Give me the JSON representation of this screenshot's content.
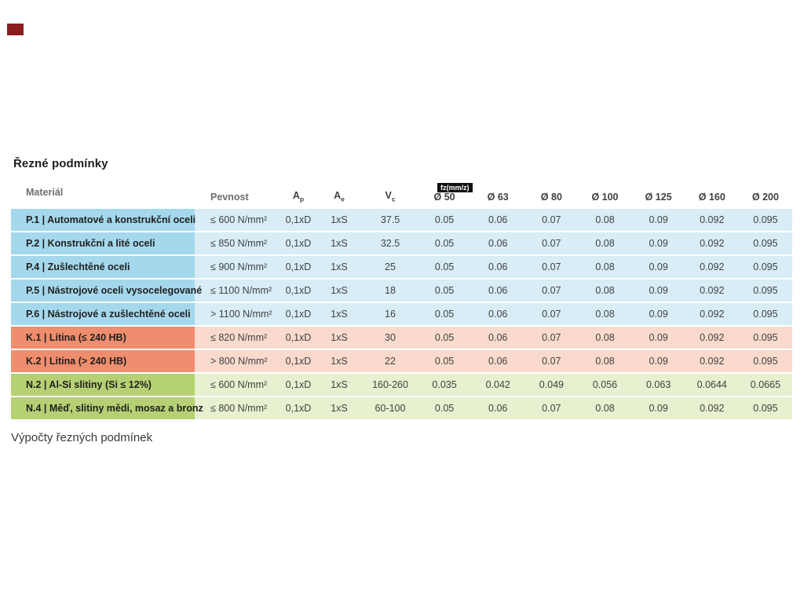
{
  "page": {
    "title": "Řezné podmínky",
    "footer": "Výpočty řezných podmínek"
  },
  "table": {
    "fz_badge": "fz(mm/z)",
    "headers": {
      "material": "Materiál",
      "pevnost": "Pevnost",
      "ap_main": "A",
      "ap_sub": "p",
      "ae_main": "A",
      "ae_sub": "e",
      "vc_main": "V",
      "vc_sub": "c",
      "diameters": [
        "Ø 50",
        "Ø 63",
        "Ø 80",
        "Ø 100",
        "Ø 125",
        "Ø 160",
        "Ø 200"
      ]
    },
    "rows": [
      {
        "group": "P",
        "label": "P.1 | Automatové a konstrukční oceli",
        "pevnost": "≤ 600 N/mm²",
        "ap": "0,1xD",
        "ae": "1xS",
        "vc": "37.5",
        "fz": [
          "0.05",
          "0.06",
          "0.07",
          "0.08",
          "0.09",
          "0.092",
          "0.095"
        ]
      },
      {
        "group": "P",
        "label": "P.2 | Konstrukční a lité oceli",
        "pevnost": "≤ 850 N/mm²",
        "ap": "0,1xD",
        "ae": "1xS",
        "vc": "32.5",
        "fz": [
          "0.05",
          "0.06",
          "0.07",
          "0.08",
          "0.09",
          "0.092",
          "0.095"
        ]
      },
      {
        "group": "P",
        "label": "P.4 | Zušlechtěné oceli",
        "pevnost": "≤ 900 N/mm²",
        "ap": "0,1xD",
        "ae": "1xS",
        "vc": "25",
        "fz": [
          "0.05",
          "0.06",
          "0.07",
          "0.08",
          "0.09",
          "0.092",
          "0.095"
        ]
      },
      {
        "group": "P",
        "label": "P.5 | Nástrojové oceli vysocelegované",
        "pevnost": "≤ 1100 N/mm²",
        "ap": "0,1xD",
        "ae": "1xS",
        "vc": "18",
        "fz": [
          "0.05",
          "0.06",
          "0.07",
          "0.08",
          "0.09",
          "0.092",
          "0.095"
        ]
      },
      {
        "group": "P",
        "label": "P.6 | Nástrojové a zušlechtěné oceli",
        "pevnost": "> 1100 N/mm²",
        "ap": "0,1xD",
        "ae": "1xS",
        "vc": "16",
        "fz": [
          "0.05",
          "0.06",
          "0.07",
          "0.08",
          "0.09",
          "0.092",
          "0.095"
        ]
      },
      {
        "group": "K",
        "label": "K.1 | Litina (≤ 240 HB)",
        "pevnost": "≤ 820 N/mm²",
        "ap": "0,1xD",
        "ae": "1xS",
        "vc": "30",
        "fz": [
          "0.05",
          "0.06",
          "0.07",
          "0.08",
          "0.09",
          "0.092",
          "0.095"
        ]
      },
      {
        "group": "K",
        "label": "K.2 | Litina (> 240 HB)",
        "pevnost": "> 800 N/mm²",
        "ap": "0,1xD",
        "ae": "1xS",
        "vc": "22",
        "fz": [
          "0.05",
          "0.06",
          "0.07",
          "0.08",
          "0.09",
          "0.092",
          "0.095"
        ]
      },
      {
        "group": "N",
        "label": "N.2 | Al-Si slitiny (Si ≤ 12%)",
        "pevnost": "≤ 600 N/mm²",
        "ap": "0,1xD",
        "ae": "1xS",
        "vc": "160-260",
        "fz": [
          "0.035",
          "0.042",
          "0.049",
          "0.056",
          "0.063",
          "0.0644",
          "0.0665"
        ]
      },
      {
        "group": "N",
        "label": "N.4 | Měď, slitiny mědi, mosaz a bronz",
        "pevnost": "≤ 800 N/mm²",
        "ap": "0,1xD",
        "ae": "1xS",
        "vc": "60-100",
        "fz": [
          "0.05",
          "0.06",
          "0.07",
          "0.08",
          "0.09",
          "0.092",
          "0.095"
        ]
      }
    ]
  },
  "colors": {
    "p_dark": "#a5d8ec",
    "p_light": "#d9edf7",
    "k_dark": "#ef8e6e",
    "k_light": "#f9dacc",
    "n_dark": "#b5d173",
    "n_light": "#e7f0cf",
    "marker_red": "#8a1e1e",
    "badge_black": "#121212"
  }
}
